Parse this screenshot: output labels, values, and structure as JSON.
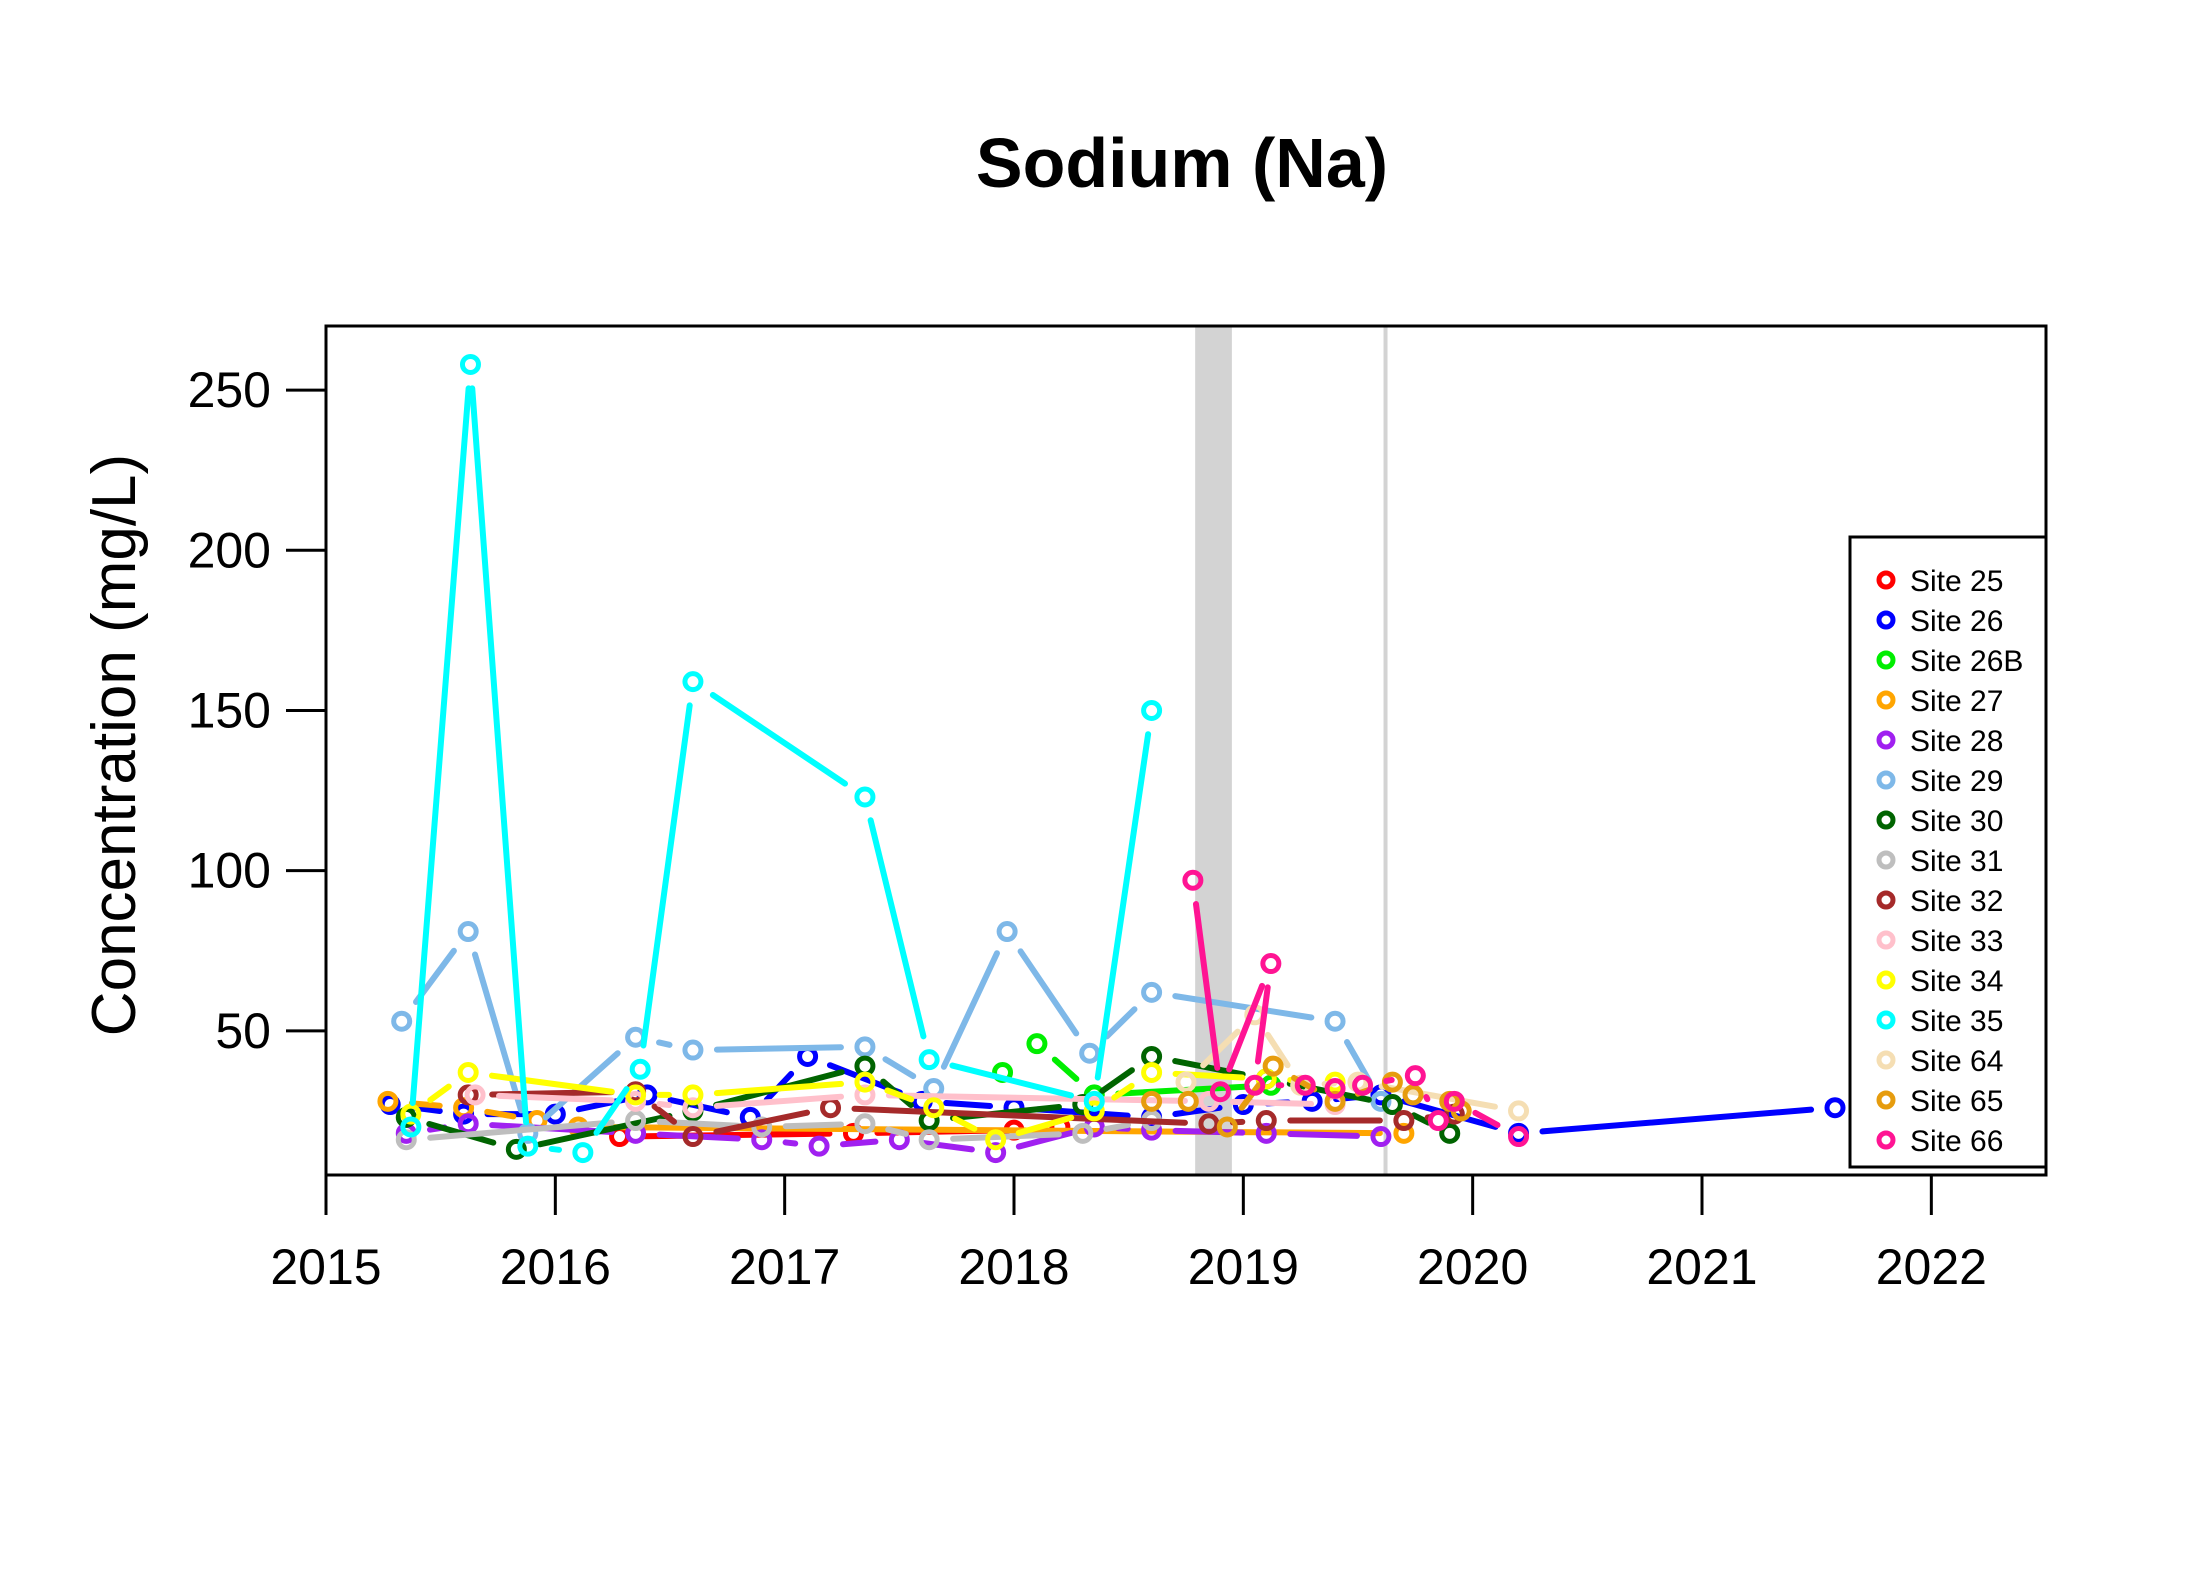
{
  "chart_data": {
    "type": "line",
    "title": "Sodium (Na)",
    "xlabel": "",
    "ylabel": "Concentration (mg/L)",
    "xlim": [
      2015,
      2022.5
    ],
    "ylim": [
      5,
      270
    ],
    "x_ticks": [
      "2015",
      "2016",
      "2017",
      "2018",
      "2019",
      "2020",
      "2021",
      "2022"
    ],
    "y_ticks": [
      "50",
      "100",
      "150",
      "200",
      "250"
    ],
    "shaded_periods": [
      [
        2018.79,
        2018.95
      ]
    ],
    "reference_lines": [
      2019.62
    ],
    "shade_color": "#d3d3d3",
    "legend": {
      "position": "right",
      "box": true
    },
    "series": [
      {
        "name": "Site 25",
        "color": "#ff0000",
        "points": [
          [
            2016.28,
            17
          ],
          [
            2017.3,
            18
          ],
          [
            2018.0,
            19
          ],
          [
            2018.2,
            20
          ]
        ]
      },
      {
        "name": "Site 26",
        "color": "#0000ff",
        "points": [
          [
            2015.28,
            27
          ],
          [
            2015.6,
            24
          ],
          [
            2016.0,
            24
          ],
          [
            2016.4,
            30
          ],
          [
            2016.85,
            23
          ],
          [
            2017.1,
            42
          ],
          [
            2017.6,
            28
          ],
          [
            2018.0,
            26
          ],
          [
            2018.6,
            23
          ],
          [
            2019.0,
            27
          ],
          [
            2019.3,
            28
          ],
          [
            2019.6,
            30
          ],
          [
            2020.2,
            18
          ],
          [
            2021.58,
            26
          ]
        ]
      },
      {
        "name": "Site 26B",
        "color": "#00ee00",
        "points": [
          [
            2017.95,
            37
          ],
          [
            2018.1,
            46
          ],
          [
            2018.35,
            30
          ],
          [
            2019.12,
            33
          ]
        ]
      },
      {
        "name": "Site 27",
        "color": "#ffa500",
        "points": [
          [
            2015.27,
            28
          ],
          [
            2015.6,
            26
          ],
          [
            2015.92,
            22
          ],
          [
            2016.1,
            20
          ],
          [
            2019.7,
            18
          ]
        ]
      },
      {
        "name": "Site 28",
        "color": "#a020f0",
        "points": [
          [
            2015.35,
            18
          ],
          [
            2015.62,
            21
          ],
          [
            2016.35,
            18
          ],
          [
            2016.9,
            16
          ],
          [
            2017.15,
            14
          ],
          [
            2017.5,
            16
          ],
          [
            2017.92,
            12
          ],
          [
            2018.35,
            20
          ],
          [
            2018.6,
            19
          ],
          [
            2019.1,
            18
          ],
          [
            2019.6,
            17
          ]
        ]
      },
      {
        "name": "Site 29",
        "color": "#7eb8e8",
        "points": [
          [
            2015.33,
            53
          ],
          [
            2015.62,
            81
          ],
          [
            2015.88,
            18
          ],
          [
            2016.35,
            48
          ],
          [
            2016.6,
            44
          ],
          [
            2017.35,
            45
          ],
          [
            2017.65,
            32
          ],
          [
            2017.97,
            81
          ],
          [
            2018.33,
            43
          ],
          [
            2018.6,
            62
          ],
          [
            2019.4,
            53
          ],
          [
            2019.6,
            28
          ]
        ]
      },
      {
        "name": "Site 30",
        "color": "#006400",
        "points": [
          [
            2015.35,
            23
          ],
          [
            2015.83,
            13
          ],
          [
            2016.6,
            25
          ],
          [
            2017.35,
            39
          ],
          [
            2017.63,
            22
          ],
          [
            2018.3,
            27
          ],
          [
            2018.6,
            42
          ],
          [
            2019.1,
            35
          ],
          [
            2019.65,
            27
          ],
          [
            2019.9,
            18
          ]
        ]
      },
      {
        "name": "Site 31",
        "color": "#bebebe",
        "points": [
          [
            2015.35,
            16
          ],
          [
            2016.35,
            22
          ],
          [
            2016.9,
            20
          ],
          [
            2017.35,
            21
          ],
          [
            2017.63,
            16
          ],
          [
            2018.3,
            18
          ],
          [
            2018.6,
            22
          ]
        ]
      },
      {
        "name": "Site 32",
        "color": "#a52a2a",
        "points": [
          [
            2015.62,
            30
          ],
          [
            2016.35,
            31
          ],
          [
            2016.6,
            17
          ],
          [
            2017.2,
            26
          ],
          [
            2018.85,
            21
          ],
          [
            2019.1,
            22
          ],
          [
            2019.7,
            22
          ],
          [
            2019.92,
            24
          ]
        ]
      },
      {
        "name": "Site 33",
        "color": "#ffc0cb",
        "points": [
          [
            2015.65,
            30
          ],
          [
            2016.35,
            28
          ],
          [
            2016.6,
            26
          ],
          [
            2017.35,
            30
          ],
          [
            2018.85,
            28
          ],
          [
            2019.4,
            27
          ]
        ]
      },
      {
        "name": "Site 34",
        "color": "#ffff00",
        "points": [
          [
            2015.37,
            24
          ],
          [
            2015.62,
            37
          ],
          [
            2016.35,
            30
          ],
          [
            2016.6,
            30
          ],
          [
            2017.35,
            34
          ],
          [
            2017.65,
            26
          ],
          [
            2017.92,
            16
          ],
          [
            2018.35,
            25
          ],
          [
            2018.6,
            37
          ],
          [
            2019.1,
            35
          ],
          [
            2019.4,
            34
          ]
        ]
      },
      {
        "name": "Site 35",
        "color": "#00ffff",
        "points": [
          [
            2015.37,
            20
          ],
          [
            2015.63,
            258
          ],
          [
            2015.88,
            14
          ],
          [
            2016.12,
            12
          ],
          [
            2016.37,
            38
          ],
          [
            2016.6,
            159
          ],
          [
            2017.35,
            123
          ],
          [
            2017.63,
            41
          ],
          [
            2018.35,
            28
          ],
          [
            2018.6,
            150
          ]
        ]
      },
      {
        "name": "Site 64",
        "color": "#f5deb3",
        "points": [
          [
            2018.75,
            34
          ],
          [
            2019.05,
            55
          ],
          [
            2019.25,
            33
          ],
          [
            2019.5,
            34
          ],
          [
            2020.2,
            25
          ]
        ]
      },
      {
        "name": "Site 65",
        "color": "#e69c0e",
        "points": [
          [
            2018.6,
            28
          ],
          [
            2018.76,
            28
          ],
          [
            2018.93,
            20
          ],
          [
            2019.13,
            39
          ],
          [
            2019.4,
            28
          ],
          [
            2019.65,
            34
          ],
          [
            2019.74,
            30
          ],
          [
            2019.9,
            28
          ],
          [
            2019.95,
            25
          ]
        ]
      },
      {
        "name": "Site 66",
        "color": "#ff1493",
        "points": [
          [
            2018.78,
            97
          ],
          [
            2018.9,
            31
          ],
          [
            2019.12,
            71
          ],
          [
            2019.05,
            33
          ],
          [
            2019.27,
            33
          ],
          [
            2019.4,
            32
          ],
          [
            2019.52,
            33
          ],
          [
            2019.75,
            36
          ],
          [
            2019.85,
            22
          ],
          [
            2019.92,
            28
          ],
          [
            2020.2,
            17
          ]
        ]
      }
    ]
  }
}
